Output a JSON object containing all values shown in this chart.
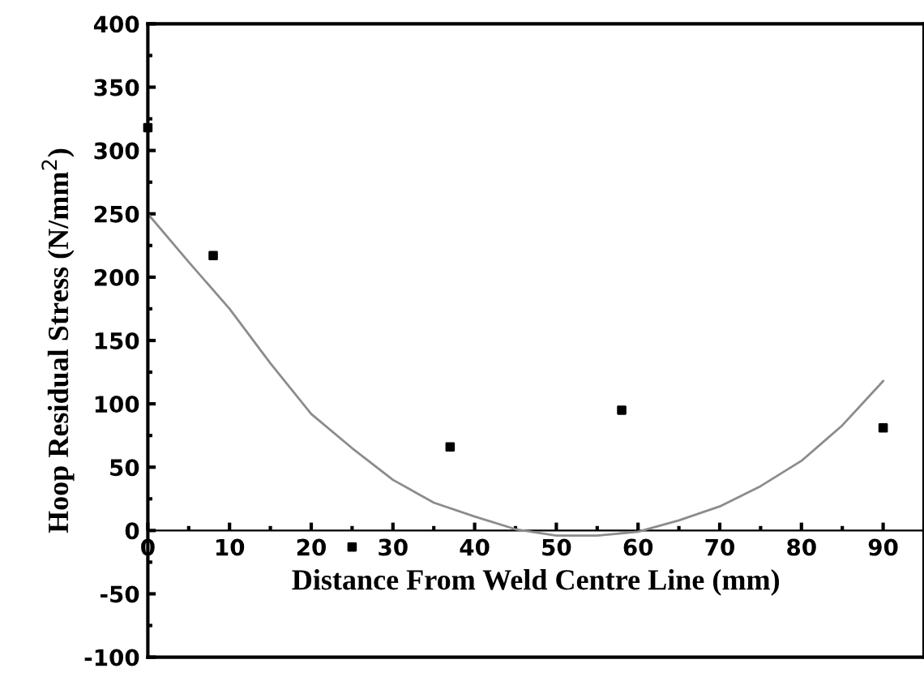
{
  "chart_data": {
    "type": "scatter",
    "xlabel": "Distance From Weld Centre Line (mm)",
    "ylabel": "Hoop Residual Stress (N/mm$^{2}$)",
    "xlim": [
      0,
      95
    ],
    "ylim": [
      -100,
      400
    ],
    "xticks": [
      0,
      10,
      20,
      30,
      40,
      50,
      60,
      70,
      80,
      90
    ],
    "yticks": [
      -100,
      -50,
      0,
      50,
      100,
      150,
      200,
      250,
      300,
      350,
      400
    ],
    "grid": false,
    "legend": false,
    "series": [
      {
        "marker": "square",
        "color": "#000000",
        "x": [
          0,
          8,
          25,
          37,
          58,
          90
        ],
        "values": [
          318,
          217,
          -13,
          66,
          95,
          81
        ]
      },
      {
        "type": "line",
        "marker": "none",
        "line_style": "solid",
        "color": "#8c8c8c",
        "x": [
          0,
          5,
          10,
          15,
          20,
          25,
          30,
          35,
          40,
          45,
          50,
          55,
          60,
          65,
          70,
          75,
          80,
          85,
          90
        ],
        "values": [
          250,
          212,
          175,
          132,
          92,
          65,
          40,
          22,
          11,
          1,
          -4,
          -4,
          -1,
          8,
          19,
          35,
          55,
          83,
          118
        ]
      }
    ]
  }
}
